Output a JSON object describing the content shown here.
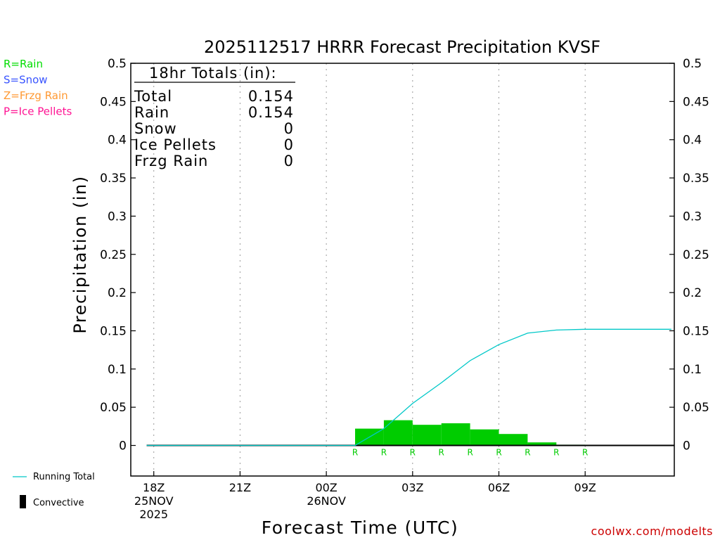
{
  "chart_data": {
    "type": "bar",
    "title": "2025112517 HRRR Forecast Precipitation KVSF",
    "xlabel": "Forecast Time (UTC)",
    "ylabel": "Precipitation (in)",
    "ylim": [
      -0.04,
      0.5
    ],
    "xlim": [
      -0.8,
      18.1
    ],
    "yticks": [
      "0",
      "0.05",
      "0.1",
      "0.15",
      "0.2",
      "0.25",
      "0.3",
      "0.35",
      "0.4",
      "0.45",
      "0.5"
    ],
    "ytick_values": [
      0,
      0.05,
      0.1,
      0.15,
      0.2,
      0.25,
      0.3,
      0.35,
      0.4,
      0.45,
      0.5
    ],
    "xticks": [
      {
        "hour": 0,
        "lines": [
          "18Z",
          "25NOV",
          "2025"
        ]
      },
      {
        "hour": 3,
        "lines": [
          "21Z"
        ]
      },
      {
        "hour": 6,
        "lines": [
          "00Z",
          "26NOV"
        ]
      },
      {
        "hour": 9,
        "lines": [
          "03Z"
        ]
      },
      {
        "hour": 12,
        "lines": [
          "06Z"
        ]
      },
      {
        "hour": 15,
        "lines": [
          "09Z"
        ]
      }
    ],
    "hourly_precip": {
      "hours": [
        1,
        2,
        3,
        4,
        5,
        6,
        7,
        8,
        9,
        10,
        11,
        12,
        13,
        14,
        15,
        16,
        17,
        18
      ],
      "values": [
        0,
        0,
        0,
        0,
        0,
        0,
        0,
        0.022,
        0.033,
        0.027,
        0.029,
        0.021,
        0.015,
        0.004,
        0.001,
        0,
        0,
        0
      ],
      "color": "#00cc00"
    },
    "running_total": {
      "name": "Running Total",
      "hours": [
        -0.25,
        7,
        8,
        9,
        10,
        11,
        12,
        13,
        14,
        15,
        16,
        17,
        18
      ],
      "values": [
        0,
        0,
        0.022,
        0.055,
        0.082,
        0.111,
        0.132,
        0.147,
        0.151,
        0.152,
        0.152,
        0.152,
        0.152
      ],
      "color": "#00c8c8"
    },
    "ptype_markers": {
      "hours": [
        7,
        8,
        9,
        10,
        11,
        12,
        13,
        14,
        15
      ],
      "label": "R",
      "color": "#00cc00"
    },
    "totals_box": {
      "header": "18hr Totals (in):",
      "rows": [
        {
          "label": "Total",
          "value": "0.154"
        },
        {
          "label": "Rain",
          "value": "0.154"
        },
        {
          "label": "Snow",
          "value": "0"
        },
        {
          "label": "Ice Pellets",
          "value": "0"
        },
        {
          "label": "Frzg Rain",
          "value": "0"
        }
      ]
    },
    "ptype_legend": [
      {
        "text": "R=Rain",
        "color": "#00dd00"
      },
      {
        "text": "S=Snow",
        "color": "#3a55ff"
      },
      {
        "text": "Z=Frzg Rain",
        "color": "#ff9933"
      },
      {
        "text": "P=Ice Pellets",
        "color": "#ff1493"
      }
    ],
    "legend": {
      "running_total_label": "Running Total",
      "convective_label": "Convective"
    },
    "credit": "coolwx.com/modelts"
  }
}
